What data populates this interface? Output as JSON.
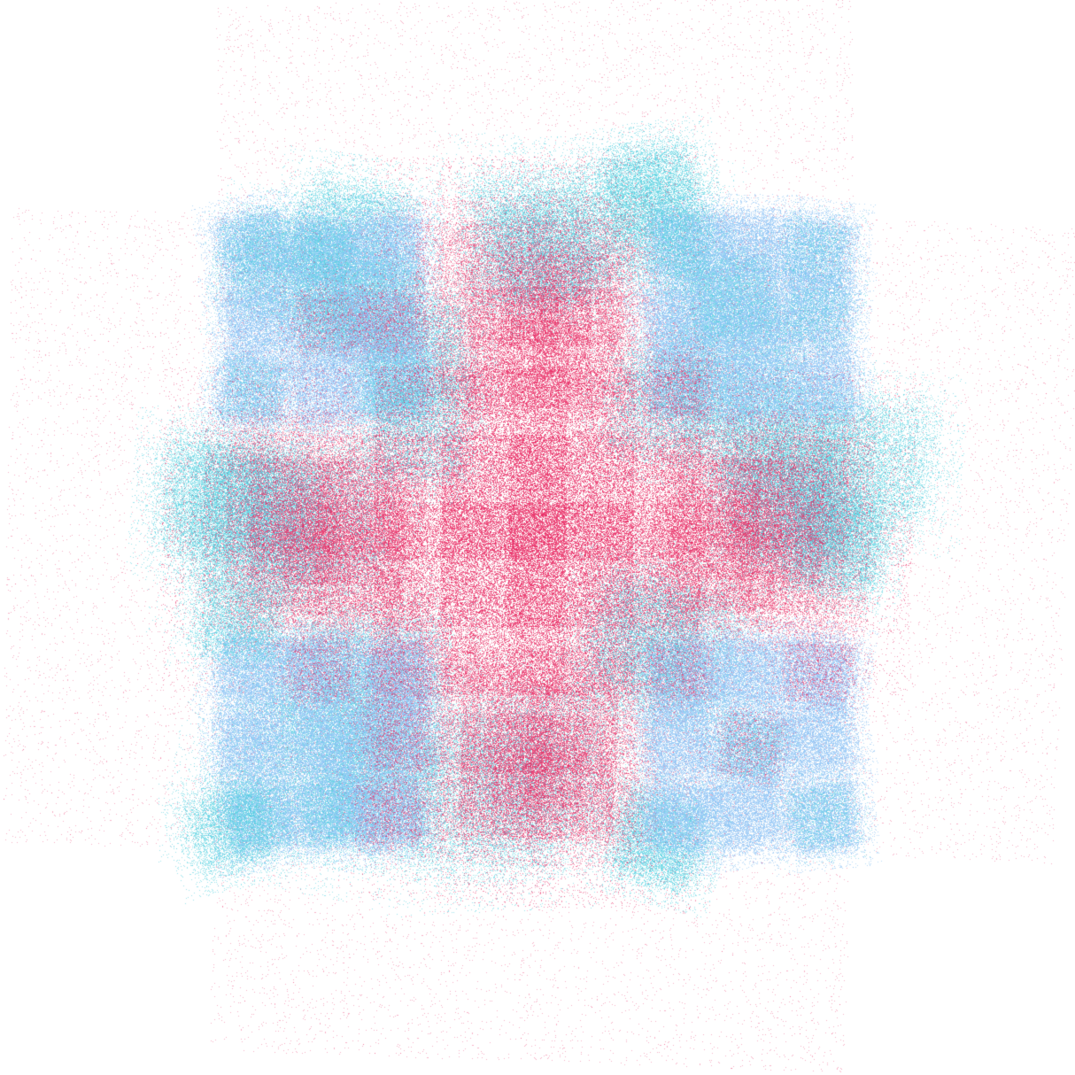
{
  "artwork": {
    "kind": "generative fractal point cloud",
    "background_color": "#ffffff",
    "palette": {
      "crimson": "#e8245f",
      "sky_blue": "#8ec3f5",
      "cyan": "#4fcfe0"
    },
    "grid_cells": 3,
    "cell_pattern": [
      [
        "sky_blue",
        "crimson",
        "sky_blue"
      ],
      [
        "crimson",
        "crimson",
        "crimson"
      ],
      [
        "sky_blue",
        "crimson",
        "sky_blue"
      ]
    ],
    "gap_color": "cyan"
  }
}
